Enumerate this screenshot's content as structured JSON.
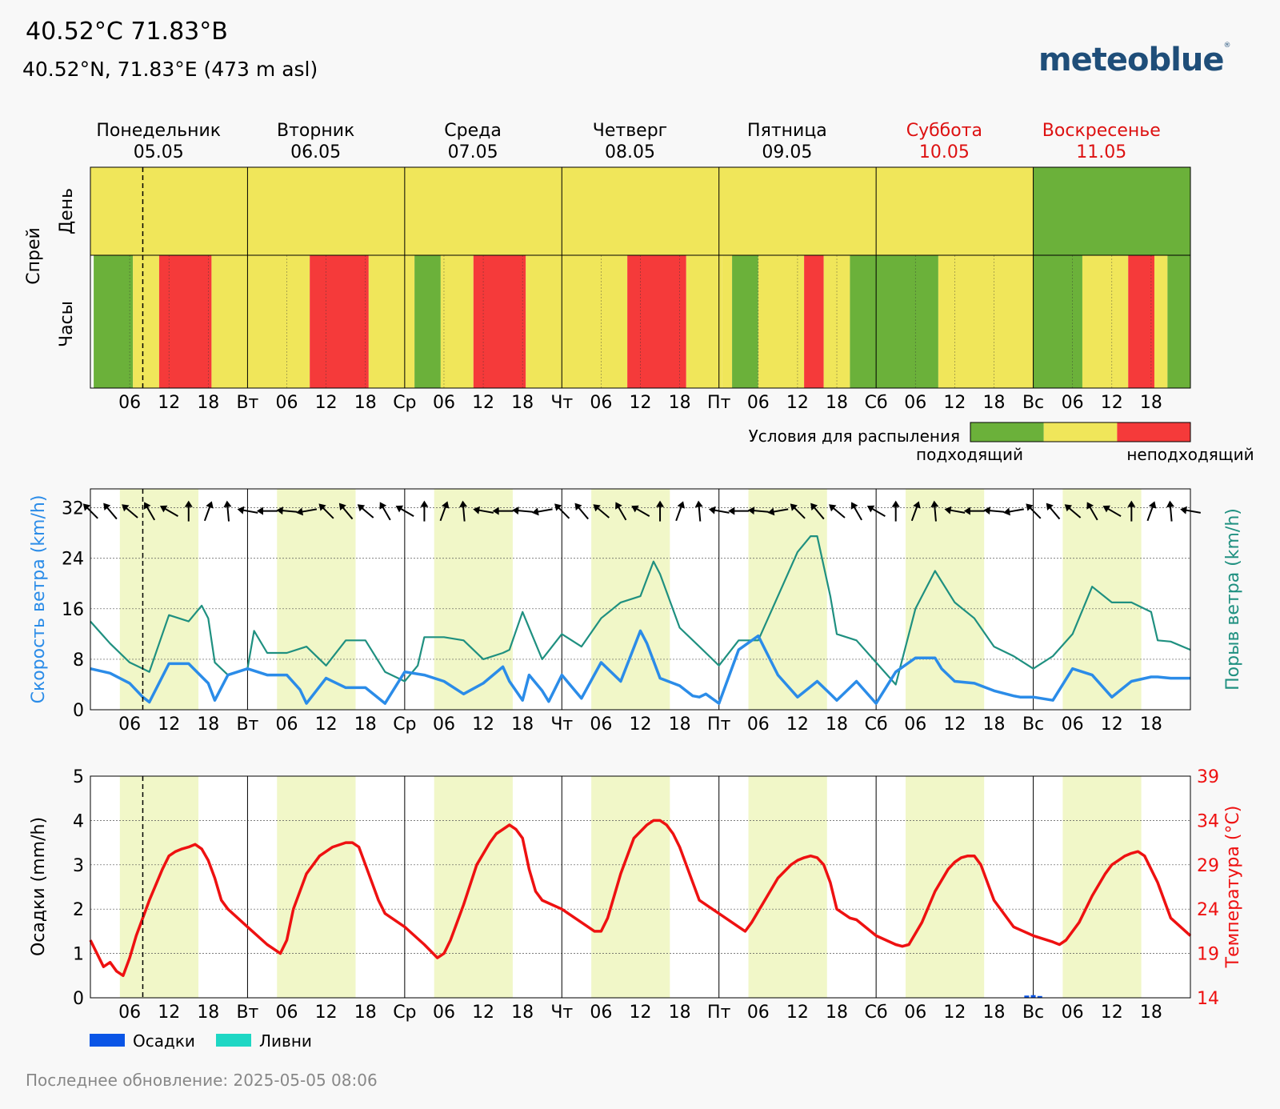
{
  "header": {
    "title": "40.52°C 71.83°B",
    "coords": "40.52°N, 71.83°E (473 m asl)",
    "brand": "meteoblue",
    "brand_mark": "®"
  },
  "days": [
    {
      "name": "Понедельник",
      "date": "05.05",
      "weekend": false
    },
    {
      "name": "Вторник",
      "date": "06.05",
      "weekend": false
    },
    {
      "name": "Среда",
      "date": "07.05",
      "weekend": false
    },
    {
      "name": "Четверг",
      "date": "08.05",
      "weekend": false
    },
    {
      "name": "Пятница",
      "date": "09.05",
      "weekend": false
    },
    {
      "name": "Суббота",
      "date": "10.05",
      "weekend": true
    },
    {
      "name": "Воскресенье",
      "date": "11.05",
      "weekend": true
    }
  ],
  "day_abbr": [
    "Пн",
    "Вт",
    "Ср",
    "Чт",
    "Пт",
    "Сб",
    "Вс"
  ],
  "hour_ticks": [
    "06",
    "12",
    "18"
  ],
  "now_hour": 8,
  "spray": {
    "ylabel": "Спрей",
    "row_day": "День",
    "row_hours": "Часы",
    "legend_title": "Условия для распыления",
    "legend_good": "подходящий",
    "legend_bad": "неподходящий",
    "colors": {
      "good": "#6bb13a",
      "ok": "#f0e65a",
      "bad": "#f53a3a"
    },
    "daily": [
      "ok",
      "ok",
      "ok",
      "ok",
      "ok",
      "ok",
      "good"
    ],
    "segments": [
      [
        0.5,
        6.5,
        "good"
      ],
      [
        6.5,
        10.5,
        "ok"
      ],
      [
        10.5,
        18.5,
        "bad"
      ],
      [
        18.5,
        33.5,
        "ok"
      ],
      [
        33.5,
        42.5,
        "bad"
      ],
      [
        42.5,
        49.5,
        "ok"
      ],
      [
        49.5,
        53.5,
        "good"
      ],
      [
        53.5,
        58.5,
        "ok"
      ],
      [
        58.5,
        66.5,
        "bad"
      ],
      [
        66.5,
        82,
        "ok"
      ],
      [
        82,
        91,
        "bad"
      ],
      [
        91,
        96.5,
        "ok"
      ],
      [
        96.5,
        98,
        "ok"
      ],
      [
        98,
        102,
        "good"
      ],
      [
        102,
        109,
        "ok"
      ],
      [
        109,
        112,
        "bad"
      ],
      [
        112,
        116,
        "ok"
      ],
      [
        116,
        120,
        "good"
      ],
      [
        120,
        129.5,
        "good"
      ],
      [
        129.5,
        144,
        "ok"
      ],
      [
        144,
        151.5,
        "good"
      ],
      [
        151.5,
        158.5,
        "ok"
      ],
      [
        158.5,
        162.5,
        "bad"
      ],
      [
        162.5,
        164.5,
        "ok"
      ],
      [
        164.5,
        168,
        "good"
      ]
    ]
  },
  "wind": {
    "ylabel_left": "Скорость ветра (km/h)",
    "ylabel_right": "Порыв ветра (km/h)",
    "color_speed": "#2b8ce8",
    "color_gust": "#1f9080",
    "yticks": [
      0,
      8,
      16,
      24,
      32
    ],
    "ylim": [
      0,
      35
    ]
  },
  "precip": {
    "ylabel_left": "Осадки (mm/h)",
    "ylabel_right": "Температура (°C)",
    "color_temp": "#ee1111",
    "color_precip": "#0a55e6",
    "color_showers": "#1ed7c4",
    "yticks_left": [
      0,
      1,
      2,
      3,
      4,
      5
    ],
    "yticks_right": [
      14,
      19,
      24,
      29,
      34,
      39
    ],
    "legend_precip": "Осадки",
    "legend_showers": "Ливни"
  },
  "chart_data": [
    {
      "type": "heatmap",
      "title": "Условия для распыления",
      "x_unit": "hours from 2025-05-05 00:00",
      "daily": [
        "подходящий-неподходящий: средний",
        "средний",
        "средний",
        "средний",
        "средний",
        "средний",
        "подходящий"
      ]
    },
    {
      "type": "line",
      "x_unit": "hours from 2025-05-05 00:00",
      "ylim": [
        0,
        35
      ],
      "series": [
        {
          "name": "Скорость ветра (km/h)",
          "x": [
            0,
            3,
            6,
            8,
            9,
            12,
            15,
            18,
            19,
            21,
            24,
            27,
            30,
            32,
            33,
            36,
            39,
            42,
            45,
            48,
            51,
            54,
            57,
            60,
            63,
            64,
            66,
            67,
            69,
            70,
            72,
            75,
            78,
            81,
            84,
            85,
            87,
            90,
            92,
            93,
            94,
            96,
            99,
            102,
            105,
            108,
            111,
            113,
            114,
            117,
            120,
            123,
            126,
            129,
            130,
            132,
            135,
            138,
            141,
            142,
            144,
            147,
            150,
            153,
            156,
            159,
            162,
            163,
            165,
            168
          ],
          "y": [
            6.5,
            5.8,
            4.2,
            2,
            1.2,
            7.3,
            7.3,
            4.2,
            1.5,
            5.5,
            6.5,
            5.5,
            5.5,
            3.2,
            1,
            5,
            3.5,
            3.5,
            1,
            6,
            5.5,
            4.5,
            2.5,
            4.2,
            6.8,
            4.5,
            1.5,
            5.5,
            3,
            1.3,
            5.5,
            1.8,
            7.5,
            4.5,
            12.5,
            10.5,
            5,
            3.8,
            2.2,
            2,
            2.5,
            1,
            9.5,
            11.7,
            5.5,
            2,
            4.5,
            2.5,
            1.5,
            4.5,
            1,
            6,
            8.2,
            8.2,
            6.5,
            4.5,
            4.2,
            3,
            2.2,
            2,
            2,
            1.5,
            6.5,
            5.5,
            2,
            4.5,
            5.2,
            5.2,
            5,
            5
          ]
        },
        {
          "name": "Порыв ветра (km/h)",
          "x": [
            0,
            3,
            6,
            8,
            9,
            12,
            15,
            17,
            18,
            19,
            21,
            24,
            25,
            27,
            30,
            33,
            36,
            39,
            42,
            45,
            48,
            50,
            51,
            54,
            57,
            60,
            63,
            64,
            66,
            69,
            72,
            75,
            78,
            81,
            84,
            86,
            87,
            90,
            93,
            96,
            99,
            102,
            105,
            108,
            110,
            111,
            113,
            114,
            117,
            120,
            123,
            126,
            129,
            132,
            135,
            138,
            141,
            144,
            147,
            150,
            153,
            156,
            159,
            162,
            163,
            165,
            168
          ],
          "y": [
            14,
            10.5,
            7.5,
            6.5,
            6,
            15,
            14,
            16.5,
            14.5,
            7.5,
            5.5,
            6.5,
            12.5,
            9,
            9,
            10,
            7,
            11,
            11,
            6,
            4.5,
            7,
            11.5,
            11.5,
            11,
            8,
            9,
            9.5,
            15.5,
            8,
            12,
            10,
            14.5,
            17,
            18,
            23.5,
            21.5,
            13,
            10,
            7,
            11,
            11,
            18,
            25,
            27.5,
            27.5,
            18,
            12,
            11,
            7.5,
            4,
            16,
            22,
            17,
            14.5,
            10,
            8.5,
            6.5,
            8.5,
            12,
            19.5,
            17,
            17,
            15.5,
            11,
            10.8,
            9.5
          ]
        }
      ]
    },
    {
      "type": "line",
      "x_unit": "hours from 2025-05-05 00:00",
      "y_unit": "°C",
      "series": [
        {
          "name": "Температура (°C)",
          "x": [
            0,
            2,
            3,
            4,
            5,
            6,
            7,
            9,
            11,
            12,
            13,
            14,
            15,
            16,
            17,
            18,
            19,
            20,
            21,
            24,
            27,
            29,
            30,
            31,
            33,
            35,
            37,
            39,
            40,
            41,
            42,
            44,
            45,
            48,
            51,
            53,
            54,
            55,
            57,
            59,
            61,
            62,
            63,
            64,
            65,
            66,
            67,
            68,
            69,
            72,
            75,
            77,
            78,
            79,
            81,
            83,
            85,
            86,
            87,
            88,
            89,
            90,
            91,
            92,
            93,
            96,
            99,
            100,
            101,
            103,
            105,
            107,
            108,
            109,
            110,
            111,
            112,
            113,
            114,
            116,
            117,
            120,
            123,
            124,
            125,
            127,
            129,
            131,
            132,
            133,
            134,
            135,
            136,
            138,
            141,
            144,
            147,
            148,
            149,
            151,
            153,
            155,
            156,
            157,
            158,
            159,
            160,
            161,
            163,
            165,
            168
          ],
          "y": [
            20.5,
            17.5,
            18,
            17,
            16.5,
            18.5,
            21,
            25,
            28.5,
            30,
            30.5,
            30.8,
            31,
            31.3,
            30.8,
            29.5,
            27.5,
            25,
            24,
            22,
            20,
            19,
            20.5,
            24,
            28,
            30,
            31,
            31.5,
            31.5,
            31,
            29,
            25,
            23.5,
            22,
            20,
            18.5,
            19,
            20.5,
            24.5,
            29,
            31.5,
            32.5,
            33,
            33.5,
            33,
            32,
            28.5,
            26,
            25,
            24,
            22.5,
            21.5,
            21.5,
            23,
            28,
            32,
            33.5,
            34,
            34,
            33.5,
            32.5,
            31,
            29,
            27,
            25,
            23.5,
            22,
            21.5,
            22.5,
            25,
            27.5,
            29,
            29.5,
            29.8,
            30,
            29.8,
            29,
            27,
            24,
            23,
            22.8,
            21,
            20,
            19.8,
            20,
            22.5,
            26,
            28.5,
            29.3,
            29.8,
            30,
            30,
            29,
            25,
            22,
            21,
            20.3,
            20,
            20.5,
            22.5,
            25.5,
            28,
            29,
            29.5,
            30,
            30.3,
            30.5,
            30,
            27,
            23,
            21
          ]
        },
        {
          "name": "Осадки (mm/h)",
          "x": [
            143,
            144,
            145
          ],
          "y": [
            0.05,
            0.06,
            0.04
          ]
        }
      ]
    }
  ]
}
